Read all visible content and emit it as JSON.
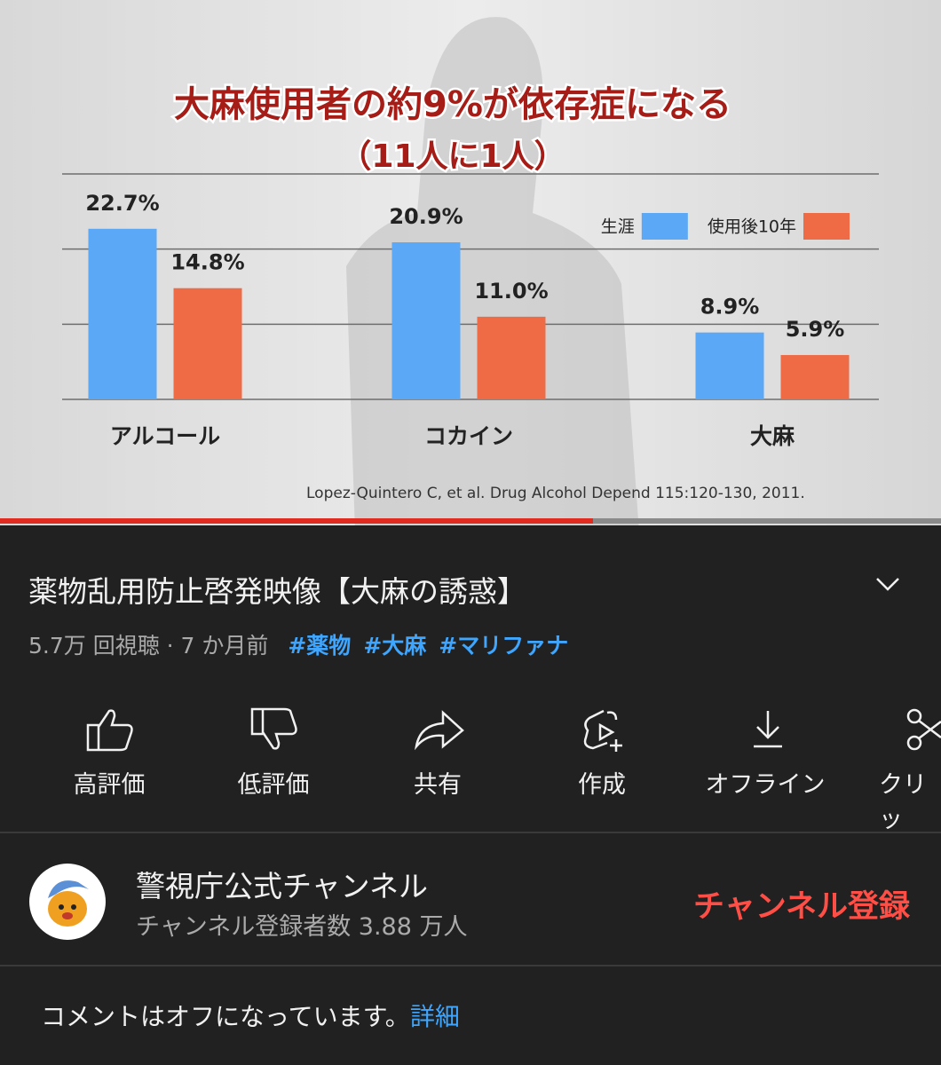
{
  "chart_data": {
    "type": "bar",
    "title": "大麻使用者の約9%が依存症になる",
    "subtitle": "（11人に1人）",
    "categories": [
      "アルコール",
      "コカイン",
      "大麻"
    ],
    "series": [
      {
        "name": "生涯",
        "color": "#5aa8f6",
        "values": [
          22.7,
          20.9,
          8.9
        ],
        "value_labels": [
          "22.7%",
          "20.9%",
          "8.9%"
        ]
      },
      {
        "name": "使用後10年",
        "color": "#ee6b46",
        "values": [
          14.8,
          11.0,
          5.9
        ],
        "value_labels": [
          "14.8%",
          "11.0%",
          "5.9%"
        ]
      }
    ],
    "ylim": [
      0,
      30
    ],
    "gridlines": [
      0,
      10,
      20,
      30
    ],
    "legend": "upper right",
    "source": "Lopez-Quintero C, et al. Drug Alcohol Depend 115:120-130, 2011."
  },
  "video": {
    "title": "薬物乱用防止啓発映像【大麻の誘惑】",
    "meta": "5.7万 回視聴 · 7 か月前",
    "hashtags": [
      "#薬物",
      "#大麻",
      "#マリファナ"
    ]
  },
  "actions": [
    "高評価",
    "低評価",
    "共有",
    "作成",
    "オフライン",
    "クリッ"
  ],
  "channel": {
    "name": "警視庁公式チャンネル",
    "subscribers": "チャンネル登録者数 3.88 万人",
    "subscribe": "チャンネル登録"
  },
  "comments": {
    "text": "コメントはオフになっています。",
    "link": "詳細"
  }
}
